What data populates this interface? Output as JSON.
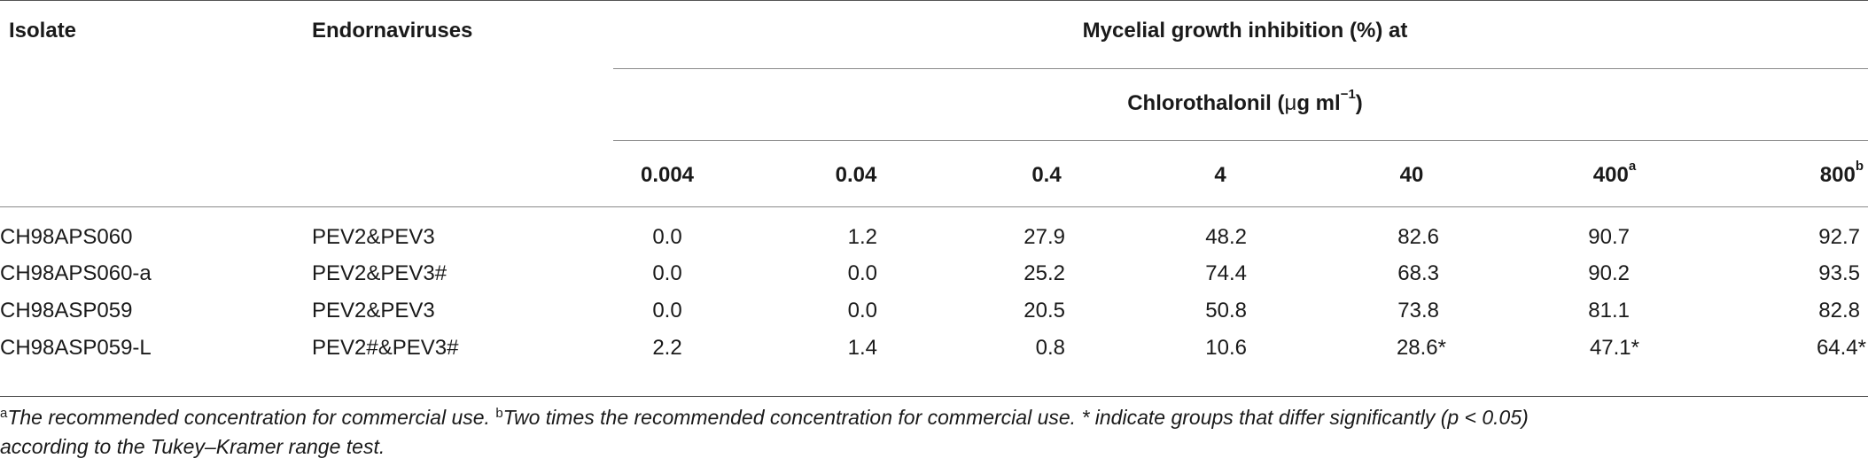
{
  "table": {
    "headers": {
      "isolate": "Isolate",
      "endornaviruses": "Endornaviruses",
      "group_title": "Mycelial growth inhibition (%) at",
      "subgroup_title_prefix": "Chlorothalonil (",
      "subgroup_unit_mu": "μ",
      "subgroup_unit_rest": "g ml",
      "subgroup_exponent": "−1",
      "subgroup_title_suffix": ")",
      "concentrations": [
        {
          "label": "0.004",
          "sup": ""
        },
        {
          "label": "0.04",
          "sup": ""
        },
        {
          "label": "0.4",
          "sup": ""
        },
        {
          "label": "4",
          "sup": ""
        },
        {
          "label": "40",
          "sup": ""
        },
        {
          "label": "400",
          "sup": "a"
        },
        {
          "label": "800",
          "sup": "b"
        }
      ]
    },
    "rows": [
      {
        "isolate": "CH98APS060",
        "viruses": "PEV2&PEV3",
        "values": [
          "0.0",
          "1.2",
          "27.9",
          "48.2",
          "82.6",
          "90.7",
          "92.7"
        ]
      },
      {
        "isolate": "CH98APS060-a",
        "viruses": "PEV2&PEV3#",
        "values": [
          "0.0",
          "0.0",
          "25.2",
          "74.4",
          "68.3",
          "90.2",
          "93.5"
        ]
      },
      {
        "isolate": "CH98ASP059",
        "viruses": "PEV2&PEV3",
        "values": [
          "0.0",
          "0.0",
          "20.5",
          "50.8",
          "73.8",
          "81.1",
          "82.8"
        ]
      },
      {
        "isolate": "CH98ASP059-L",
        "viruses": "PEV2#&PEV3#",
        "values": [
          "2.2",
          "1.4",
          "0.8",
          "10.6",
          "28.6*",
          "47.1*",
          "64.4*"
        ]
      }
    ]
  },
  "footnotes": {
    "a_marker": "a",
    "a_text": "The recommended concentration for commercial use.",
    "b_marker": "b",
    "b_text": "Two times the recommended concentration for commercial use. * indicate groups that differ significantly (p < 0.05)",
    "b_text_line2": "according to the Tukey–Kramer range test."
  }
}
